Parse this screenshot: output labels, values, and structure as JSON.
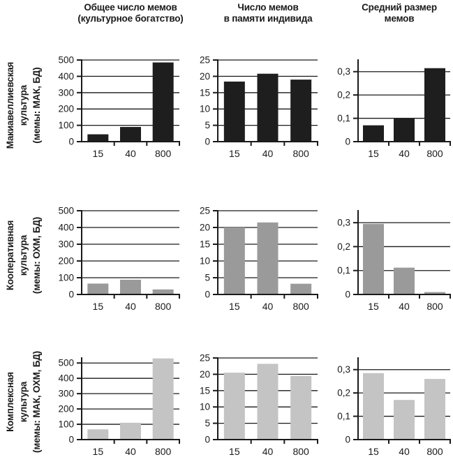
{
  "figure": {
    "col_headers": [
      {
        "line1": "Общее число мемов",
        "line2": "(культурное богатство)"
      },
      {
        "line1": "Число мемов",
        "line2": "в памяти индивида"
      },
      {
        "line1": "Средний размер",
        "line2": "мемов"
      }
    ],
    "row_labels": [
      {
        "lines": [
          "Макиавеллиевская",
          "культура",
          "(мемы: МАК, БД)"
        ]
      },
      {
        "lines": [
          "Кооперативная",
          "культура",
          "(мемы: ОХМ, БД)"
        ]
      },
      {
        "lines": [
          "Комплексная",
          "культура",
          "(мемы: МАК, ОХМ, БД)"
        ]
      }
    ],
    "colors": {
      "bar_machiavellian": "#1e1e1e",
      "bar_cooperative": "#9a9a9a",
      "bar_complex": "#c4c4c4",
      "axis": "#1a1a1a",
      "text": "#1a1a1a",
      "background": "#ffffff"
    }
  },
  "chart_data": [
    {
      "type": "bar",
      "row_label": "Макиавеллиевская культура (мемы: МАК, БД)",
      "col_header": "Общее число мемов (культурное богатство)",
      "categories": [
        "15",
        "40",
        "800"
      ],
      "values": [
        45,
        90,
        485
      ],
      "yticks": [
        0,
        100,
        200,
        300,
        400,
        500
      ],
      "ytick_labels": [
        "0",
        "100",
        "200",
        "300",
        "400",
        "500"
      ],
      "ylim": [
        0,
        500
      ],
      "grid": true,
      "bar_color": "#1e1e1e"
    },
    {
      "type": "bar",
      "row_label": "Макиавеллиевская культура (мемы: МАК, БД)",
      "col_header": "Число мемов в памяти индивида",
      "categories": [
        "15",
        "40",
        "800"
      ],
      "values": [
        18.4,
        20.8,
        19
      ],
      "yticks": [
        0,
        5,
        10,
        15,
        20,
        25
      ],
      "ytick_labels": [
        "0",
        "5",
        "10",
        "15",
        "20",
        "25"
      ],
      "ylim": [
        0,
        25
      ],
      "grid": true,
      "bar_color": "#1e1e1e"
    },
    {
      "type": "bar",
      "row_label": "Макиавеллиевская культура (мемы: МАК, БД)",
      "col_header": "Средний размер мемов",
      "categories": [
        "15",
        "40",
        "800"
      ],
      "values": [
        0.07,
        0.1,
        0.315
      ],
      "yticks": [
        0,
        0.1,
        0.2,
        0.3
      ],
      "ytick_labels": [
        "0",
        "0,1",
        "0,2",
        "0,3"
      ],
      "ylim": [
        0,
        0.35
      ],
      "grid": true,
      "bar_color": "#1e1e1e"
    },
    {
      "type": "bar",
      "row_label": "Кооперативная культура (мемы: ОХМ, БД)",
      "col_header": "Общее число мемов (культурное богатство)",
      "categories": [
        "15",
        "40",
        "800"
      ],
      "values": [
        65,
        88,
        30
      ],
      "yticks": [
        0,
        100,
        200,
        300,
        400,
        500
      ],
      "ytick_labels": [
        "0",
        "100",
        "200",
        "300",
        "400",
        "500"
      ],
      "ylim": [
        0,
        500
      ],
      "grid": true,
      "bar_color": "#9a9a9a"
    },
    {
      "type": "bar",
      "row_label": "Кооперативная культура (мемы: ОХМ, БД)",
      "col_header": "Число мемов в памяти индивида",
      "categories": [
        "15",
        "40",
        "800"
      ],
      "values": [
        20,
        21.5,
        3.2
      ],
      "yticks": [
        0,
        5,
        10,
        15,
        20,
        25
      ],
      "ytick_labels": [
        "0",
        "5",
        "10",
        "15",
        "20",
        "25"
      ],
      "ylim": [
        0,
        25
      ],
      "grid": true,
      "bar_color": "#9a9a9a"
    },
    {
      "type": "bar",
      "row_label": "Кооперативная культура (мемы: ОХМ, БД)",
      "col_header": "Средний размер мемов",
      "categories": [
        "15",
        "40",
        "800"
      ],
      "values": [
        0.295,
        0.112,
        0.01
      ],
      "yticks": [
        0,
        0.1,
        0.2,
        0.3
      ],
      "ytick_labels": [
        "0",
        "0,1",
        "0,2",
        "0,3"
      ],
      "ylim": [
        0,
        0.35
      ],
      "grid": true,
      "bar_color": "#9a9a9a"
    },
    {
      "type": "bar",
      "row_label": "Комплексная культура (мемы: МАК, ОХМ, БД)",
      "col_header": "Общее число мемов (культурное богатство)",
      "categories": [
        "15",
        "40",
        "800"
      ],
      "values": [
        67,
        110,
        530
      ],
      "yticks": [
        0,
        100,
        200,
        300,
        400,
        500
      ],
      "ytick_labels": [
        "0",
        "100",
        "200",
        "300",
        "400",
        "500"
      ],
      "ylim": [
        0,
        533
      ],
      "grid": true,
      "bar_color": "#c4c4c4"
    },
    {
      "type": "bar",
      "row_label": "Комплексная культура (мемы: МАК, ОХМ, БД)",
      "col_header": "Число мемов в памяти индивида",
      "categories": [
        "15",
        "40",
        "800"
      ],
      "values": [
        20.5,
        23.2,
        19.5
      ],
      "yticks": [
        0,
        5,
        10,
        15,
        20,
        25
      ],
      "ytick_labels": [
        "0",
        "5",
        "10",
        "15",
        "20",
        "25"
      ],
      "ylim": [
        0,
        25
      ],
      "grid": true,
      "bar_color": "#c4c4c4"
    },
    {
      "type": "bar",
      "row_label": "Комплексная культура (мемы: МАК, ОХМ, БД)",
      "col_header": "Средний размер мемов",
      "categories": [
        "15",
        "40",
        "800"
      ],
      "values": [
        0.285,
        0.17,
        0.26
      ],
      "yticks": [
        0,
        0.1,
        0.2,
        0.3
      ],
      "ytick_labels": [
        "0",
        "0,1",
        "0,2",
        "0,3"
      ],
      "ylim": [
        0,
        0.35
      ],
      "grid": true,
      "bar_color": "#c4c4c4"
    }
  ]
}
